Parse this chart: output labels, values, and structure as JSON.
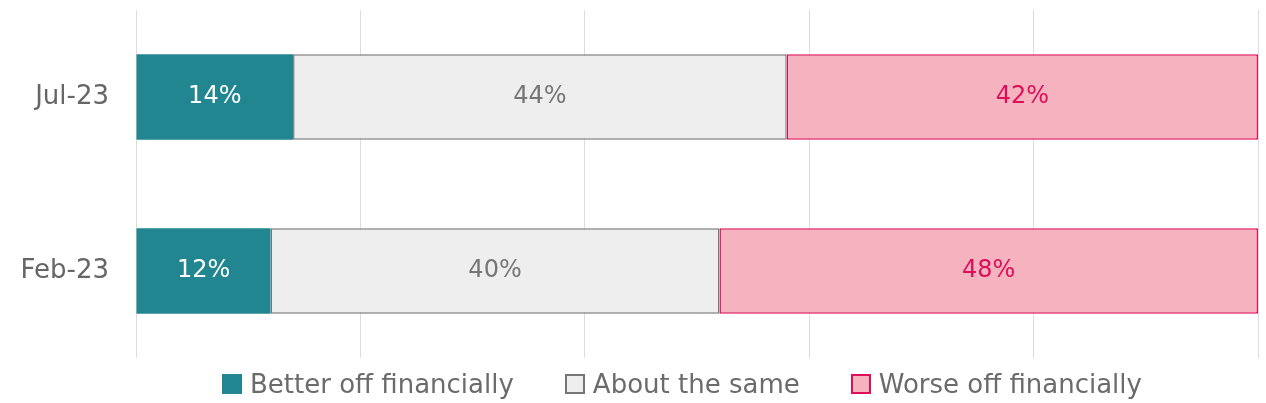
{
  "chart_data": {
    "type": "bar",
    "orientation": "horizontal",
    "stacked": true,
    "categories": [
      "Jul-23",
      "Feb-23"
    ],
    "series": [
      {
        "name": "Better off financially",
        "color": "#21868f",
        "values": [
          14,
          12
        ],
        "value_labels": [
          "14%",
          "12%"
        ]
      },
      {
        "name": "About the same",
        "color": "#eeeeee",
        "values": [
          44,
          40
        ],
        "value_labels": [
          "44%",
          "40%"
        ]
      },
      {
        "name": "Worse off financially",
        "color": "#f5b3c0",
        "values": [
          42,
          48
        ],
        "value_labels": [
          "42%",
          "48%"
        ]
      }
    ],
    "xlim": [
      0,
      100
    ],
    "xticks": [
      {
        "value": 0,
        "label": null
      },
      {
        "value": 20,
        "label": null
      },
      {
        "value": 40,
        "label": null
      },
      {
        "value": 60,
        "label": null
      },
      {
        "value": 80,
        "label": null
      },
      {
        "value": 100,
        "label": null
      }
    ],
    "grid": "x",
    "legend": "bottom",
    "tick_labels": "y"
  }
}
